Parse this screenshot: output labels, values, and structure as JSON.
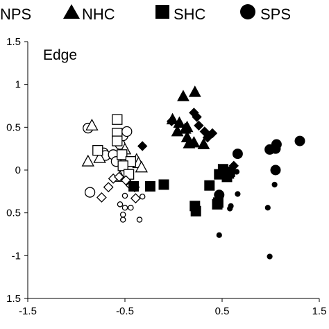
{
  "chart_data": {
    "type": "scatter",
    "title": "",
    "panel_label": "Edge",
    "xlabel": "",
    "ylabel": "",
    "xlim": [
      -1.5,
      1.5
    ],
    "ylim": [
      -1.5,
      1.5
    ],
    "x_ticks": [
      "-1.5",
      "-0.5",
      "0.5",
      "1.5"
    ],
    "y_ticks": [
      "1.5",
      "1",
      "0.5",
      "0",
      "0.5",
      "-1",
      "1.5"
    ],
    "grid": false,
    "legend": {
      "placement": "top",
      "entries": [
        {
          "name": "NPS",
          "marker": "diamond",
          "filled": true,
          "visible_marker": false
        },
        {
          "name": "NHC",
          "marker": "triangle",
          "filled": true,
          "visible_marker": true
        },
        {
          "name": "SHC",
          "marker": "square",
          "filled": true,
          "visible_marker": true
        },
        {
          "name": "SPS",
          "marker": "circle",
          "filled": true,
          "visible_marker": true
        }
      ]
    },
    "series": [
      {
        "marker": "circle",
        "fill": "none",
        "size": "large",
        "points": [
          [
            -0.88,
            0.49
          ],
          [
            -0.72,
            0.2
          ],
          [
            -0.7,
            0.17
          ],
          [
            -0.62,
            0.18
          ],
          [
            -0.59,
            0.1
          ],
          [
            -0.55,
            0.3
          ],
          [
            -0.52,
            0.4
          ],
          [
            -0.48,
            0.45
          ],
          [
            -0.86,
            -0.26
          ]
        ]
      },
      {
        "marker": "triangle",
        "fill": "none",
        "size": "large",
        "points": [
          [
            -0.84,
            0.52
          ],
          [
            -0.88,
            0.1
          ],
          [
            -0.76,
            0.14
          ],
          [
            -0.5,
            0.24
          ],
          [
            -0.38,
            0.12
          ],
          [
            -0.36,
            0.08
          ],
          [
            -0.33,
            0.03
          ],
          [
            -0.55,
            -0.08
          ]
        ]
      },
      {
        "marker": "square",
        "fill": "none",
        "size": "large",
        "points": [
          [
            -0.58,
            0.59
          ],
          [
            -0.58,
            0.43
          ],
          [
            -0.78,
            0.23
          ],
          [
            -0.58,
            0.34
          ],
          [
            -0.53,
            0.18
          ],
          [
            -0.44,
            0.1
          ],
          [
            -0.52,
            0.05
          ],
          [
            -0.46,
            -0.05
          ]
        ]
      },
      {
        "marker": "diamond",
        "fill": "none",
        "size": "medium",
        "points": [
          [
            -0.62,
            -0.1
          ],
          [
            -0.56,
            -0.08
          ],
          [
            -0.49,
            -0.12
          ],
          [
            -0.44,
            -0.18
          ],
          [
            -0.4,
            -0.2
          ],
          [
            -0.67,
            -0.2
          ],
          [
            -0.74,
            -0.32
          ],
          [
            -0.39,
            -0.33
          ]
        ]
      },
      {
        "marker": "circle",
        "fill": "none",
        "size": "small",
        "points": [
          [
            -0.5,
            -0.3
          ],
          [
            -0.32,
            -0.31
          ],
          [
            -0.55,
            -0.4
          ],
          [
            -0.5,
            -0.44
          ],
          [
            -0.44,
            -0.44
          ],
          [
            -0.52,
            -0.52
          ],
          [
            -0.52,
            -0.58
          ],
          [
            -0.35,
            -0.58
          ]
        ]
      },
      {
        "marker": "triangle",
        "fill": "black",
        "size": "large",
        "points": [
          [
            0.1,
            0.86
          ],
          [
            0.22,
            0.91
          ],
          [
            -0.01,
            0.59
          ],
          [
            0.06,
            0.55
          ],
          [
            0.12,
            0.48
          ],
          [
            0.14,
            0.5
          ],
          [
            0.14,
            0.38
          ],
          [
            0.21,
            0.32
          ],
          [
            0.31,
            0.3
          ],
          [
            0.16,
            0.31
          ],
          [
            0.04,
            0.45
          ]
        ]
      },
      {
        "marker": "diamond",
        "fill": "black",
        "size": "medium",
        "points": [
          [
            -0.32,
            0.28
          ],
          [
            -0.02,
            0.57
          ],
          [
            0.21,
            0.67
          ],
          [
            0.24,
            0.62
          ],
          [
            0.26,
            0.52
          ],
          [
            0.32,
            0.45
          ],
          [
            0.4,
            0.43
          ],
          [
            0.35,
            0.38
          ],
          [
            0.62,
            0.05
          ]
        ]
      },
      {
        "marker": "square",
        "fill": "black",
        "size": "large",
        "points": [
          [
            -0.41,
            -0.19
          ],
          [
            -0.24,
            -0.19
          ],
          [
            -0.1,
            -0.17
          ],
          [
            0.47,
            -0.05
          ],
          [
            0.51,
            0.01
          ],
          [
            0.55,
            -0.08
          ],
          [
            0.57,
            -0.04
          ],
          [
            0.58,
            -0.02
          ],
          [
            0.37,
            -0.18
          ],
          [
            0.45,
            -0.4
          ],
          [
            0.46,
            -0.38
          ],
          [
            0.22,
            -0.42
          ],
          [
            0.23,
            -0.48
          ]
        ]
      },
      {
        "marker": "circle",
        "fill": "black",
        "size": "large",
        "points": [
          [
            0.66,
            0.19
          ],
          [
            0.99,
            0.24
          ],
          [
            1.06,
            0.3
          ],
          [
            1.05,
            0.25
          ],
          [
            1.3,
            0.34
          ],
          [
            1.05,
            0.0
          ],
          [
            0.47,
            -0.29
          ]
        ]
      },
      {
        "marker": "circle",
        "fill": "black",
        "size": "small",
        "points": [
          [
            0.65,
            -0.02
          ],
          [
            0.66,
            -0.28
          ],
          [
            0.59,
            -0.42
          ],
          [
            0.58,
            -0.45
          ],
          [
            1.04,
            -0.17
          ],
          [
            0.97,
            -0.44
          ],
          [
            0.47,
            -0.76
          ],
          [
            0.99,
            -1.01
          ]
        ]
      }
    ]
  }
}
